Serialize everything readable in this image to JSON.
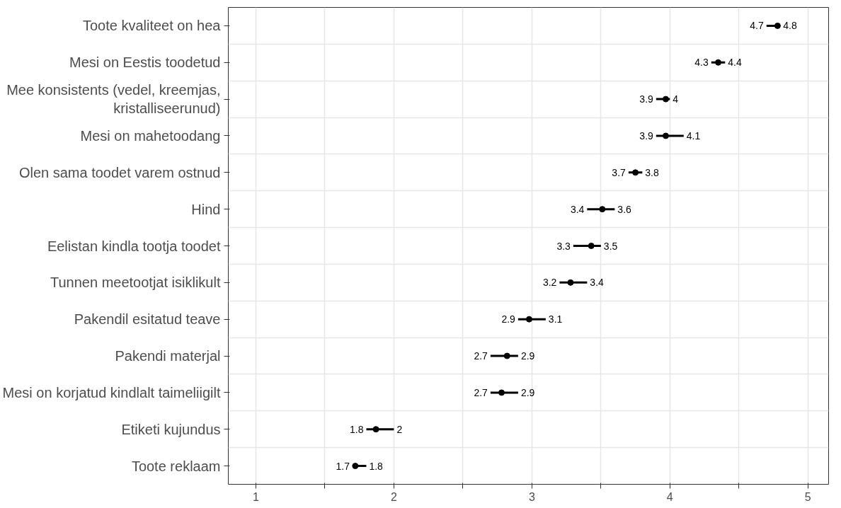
{
  "chart_data": {
    "type": "scatter",
    "orientation": "horizontal",
    "color": "#000000",
    "marker": "circle",
    "grid": true,
    "categories": [
      "Toote kvaliteet on hea",
      "Mesi on Eestis toodetud",
      "Mee konsistents (vedel, kreemjas,\nkristalliseerunud)",
      "Mesi on mahetoodang",
      "Olen sama toodet varem ostnud",
      "Hind",
      "Eelistan kindla tootja toodet",
      "Tunnen meetootjat isiklikult",
      "Pakendil esitatud teave",
      "Pakendi materjal",
      "Mesi on korjatud kindlalt taimeliigilt",
      "Etiketi kujundus",
      "Toote reklaam"
    ],
    "values": [
      4.78,
      4.35,
      3.97,
      3.97,
      3.75,
      3.51,
      3.43,
      3.28,
      2.98,
      2.82,
      2.78,
      1.87,
      1.72
    ],
    "errors": [
      [
        4.7,
        4.8
      ],
      [
        4.3,
        4.4
      ],
      [
        3.9,
        4
      ],
      [
        3.9,
        4.1
      ],
      [
        3.7,
        3.8
      ],
      [
        3.4,
        3.6
      ],
      [
        3.3,
        3.5
      ],
      [
        3.2,
        3.4
      ],
      [
        2.9,
        3.1
      ],
      [
        2.7,
        2.9
      ],
      [
        2.7,
        2.9
      ],
      [
        1.8,
        2
      ],
      [
        1.7,
        1.8
      ]
    ],
    "xlim": [
      0.8,
      5.15
    ],
    "xticks": [
      1,
      {
        "value": 1.5,
        "label": null
      },
      2,
      {
        "value": 2.5,
        "label": null
      },
      3,
      {
        "value": 3.5,
        "label": null
      },
      4,
      {
        "value": 4.5,
        "label": null
      },
      5
    ],
    "annotations": [
      {
        "text": "4.7",
        "x": 4.7,
        "y": "Toote kvaliteet on hea"
      },
      {
        "text": "4.8",
        "x": 4.8,
        "y": "Toote kvaliteet on hea"
      },
      {
        "text": "4.3",
        "x": 4.3,
        "y": "Mesi on Eestis toodetud"
      },
      {
        "text": "4.4",
        "x": 4.4,
        "y": "Mesi on Eestis toodetud"
      },
      {
        "text": "3.9",
        "x": 3.9,
        "y": "Mee konsistents (vedel, kreemjas,\nkristalliseerunud)"
      },
      {
        "text": "4",
        "x": 4,
        "y": "Mee konsistents (vedel, kreemjas,\nkristalliseerunud)"
      },
      {
        "text": "3.9",
        "x": 3.9,
        "y": "Mesi on mahetoodang"
      },
      {
        "text": "4.1",
        "x": 4.1,
        "y": "Mesi on mahetoodang"
      },
      {
        "text": "3.7",
        "x": 3.7,
        "y": "Olen sama toodet varem ostnud"
      },
      {
        "text": "3.8",
        "x": 3.8,
        "y": "Olen sama toodet varem ostnud"
      },
      {
        "text": "3.4",
        "x": 3.4,
        "y": "Hind"
      },
      {
        "text": "3.6",
        "x": 3.6,
        "y": "Hind"
      },
      {
        "text": "3.3",
        "x": 3.3,
        "y": "Eelistan kindla tootja toodet"
      },
      {
        "text": "3.5",
        "x": 3.5,
        "y": "Eelistan kindla tootja toodet"
      },
      {
        "text": "3.2",
        "x": 3.2,
        "y": "Tunnen meetootjat isiklikult"
      },
      {
        "text": "3.4",
        "x": 3.4,
        "y": "Tunnen meetootjat isiklikult"
      },
      {
        "text": "2.9",
        "x": 2.9,
        "y": "Pakendil esitatud teave"
      },
      {
        "text": "3.1",
        "x": 3.1,
        "y": "Pakendil esitatud teave"
      },
      {
        "text": "2.7",
        "x": 2.7,
        "y": "Pakendi materjal"
      },
      {
        "text": "2.9",
        "x": 2.9,
        "y": "Pakendi materjal"
      },
      {
        "text": "2.7",
        "x": 2.7,
        "y": "Mesi on korjatud kindlalt taimeliigilt"
      },
      {
        "text": "2.9",
        "x": 2.9,
        "y": "Mesi on korjatud kindlalt taimeliigilt"
      },
      {
        "text": "1.8",
        "x": 1.8,
        "y": "Etiketi kujundus"
      },
      {
        "text": "2",
        "x": 2,
        "y": "Etiketi kujundus"
      },
      {
        "text": "1.7",
        "x": 1.7,
        "y": "Toote reklaam"
      },
      {
        "text": "1.8",
        "x": 1.8,
        "y": "Toote reklaam"
      }
    ]
  }
}
